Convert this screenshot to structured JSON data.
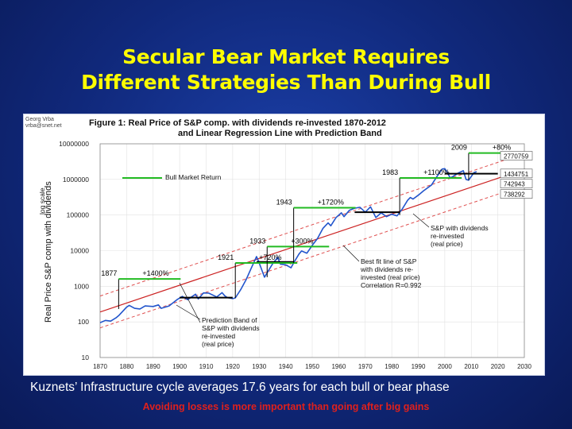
{
  "slide": {
    "title_line1": "Secular Bear Market Requires",
    "title_line2": "Different Strategies Than During Bull",
    "subtitle": "Kuznets’ Infrastructure cycle averages 17.6 years for each bull or bear phase",
    "subtitle2": "Avoiding losses is more important than going after big gains",
    "title_color": "#ffff00",
    "subtitle2_color": "#e0201c"
  },
  "chart_data": {
    "type": "line",
    "author_line1": "Georg Vrba",
    "author_line2": "vrba@snet.net",
    "title_line1": "Figure 1:  Real Price of S&P comp. with dividends re-invested  1870-2012",
    "title_line2": "and Linear Regression Line with Prediction Band",
    "ylabel": "Real Price S&P comp with dividends",
    "ylabel_scale": "log scale",
    "y_scale": "log",
    "ylim": [
      10,
      10000000
    ],
    "xlim": [
      1870,
      2030
    ],
    "x_ticks": [
      "1870",
      "1880",
      "1890",
      "1900",
      "1910",
      "1920",
      "1930",
      "1940",
      "1950",
      "1960",
      "1970",
      "1980",
      "1990",
      "2000",
      "2010",
      "2020",
      "2030"
    ],
    "y_ticks": [
      {
        "value": 10,
        "label": "10"
      },
      {
        "value": 100,
        "label": "100"
      },
      {
        "value": 1000,
        "label": "1000"
      },
      {
        "value": 10000,
        "label": "10000"
      },
      {
        "value": 100000,
        "label": "100000"
      },
      {
        "value": 1000000,
        "label": "1000000"
      },
      {
        "value": 10000000,
        "label": "10000000"
      }
    ],
    "regression": {
      "x0": 1870,
      "y0": 190,
      "x1": 2025,
      "y1": 1434751
    },
    "band_factor": 2.8,
    "series": [
      {
        "color": "#2255cc",
        "points": [
          [
            1870,
            95
          ],
          [
            1872,
            110
          ],
          [
            1874,
            105
          ],
          [
            1876,
            130
          ],
          [
            1877,
            150
          ],
          [
            1880,
            260
          ],
          [
            1881,
            290
          ],
          [
            1883,
            240
          ],
          [
            1885,
            230
          ],
          [
            1887,
            280
          ],
          [
            1890,
            270
          ],
          [
            1892,
            300
          ],
          [
            1893,
            240
          ],
          [
            1896,
            280
          ],
          [
            1899,
            420
          ],
          [
            1901,
            520
          ],
          [
            1903,
            420
          ],
          [
            1906,
            600
          ],
          [
            1907,
            440
          ],
          [
            1909,
            650
          ],
          [
            1911,
            640
          ],
          [
            1914,
            500
          ],
          [
            1916,
            660
          ],
          [
            1917,
            540
          ],
          [
            1918,
            480
          ],
          [
            1920,
            450
          ],
          [
            1921,
            470
          ],
          [
            1923,
            800
          ],
          [
            1925,
            1500
          ],
          [
            1927,
            3200
          ],
          [
            1929,
            6800
          ],
          [
            1930,
            4500
          ],
          [
            1932,
            1800
          ],
          [
            1933,
            2400
          ],
          [
            1935,
            4200
          ],
          [
            1937,
            6500
          ],
          [
            1938,
            4200
          ],
          [
            1940,
            4000
          ],
          [
            1942,
            3300
          ],
          [
            1943,
            4500
          ],
          [
            1945,
            8000
          ],
          [
            1946,
            9800
          ],
          [
            1948,
            8500
          ],
          [
            1950,
            14000
          ],
          [
            1952,
            22000
          ],
          [
            1954,
            42000
          ],
          [
            1956,
            60000
          ],
          [
            1957,
            50000
          ],
          [
            1959,
            85000
          ],
          [
            1961,
            115000
          ],
          [
            1962,
            90000
          ],
          [
            1964,
            135000
          ],
          [
            1966,
            155000
          ],
          [
            1968,
            165000
          ],
          [
            1970,
            120000
          ],
          [
            1972,
            170000
          ],
          [
            1974,
            85000
          ],
          [
            1976,
            115000
          ],
          [
            1978,
            90000
          ],
          [
            1980,
            105000
          ],
          [
            1982,
            95000
          ],
          [
            1984,
            150000
          ],
          [
            1986,
            260000
          ],
          [
            1987,
            310000
          ],
          [
            1988,
            280000
          ],
          [
            1990,
            360000
          ],
          [
            1992,
            480000
          ],
          [
            1995,
            700000
          ],
          [
            1997,
            1200000
          ],
          [
            1999,
            1950000
          ],
          [
            2000,
            2000000
          ],
          [
            2001,
            1600000
          ],
          [
            2002,
            1100000
          ],
          [
            2003,
            1200000
          ],
          [
            2005,
            1500000
          ],
          [
            2007,
            1750000
          ],
          [
            2008,
            1000000
          ],
          [
            2009,
            950000
          ],
          [
            2011,
            1550000
          ],
          [
            2012,
            1650000
          ]
        ]
      }
    ],
    "bull_arrows": [
      {
        "year": 1877,
        "base": 230,
        "top": 1600,
        "gain_label": "+1400%",
        "year_label": "1877"
      },
      {
        "year": 1921,
        "base": 470,
        "top": 4500,
        "gain_label": "+720%",
        "year_label": "1921"
      },
      {
        "year": 1933,
        "base": 1800,
        "top": 13000,
        "gain_label": "+300%",
        "year_label": "1933"
      },
      {
        "year": 1943,
        "base": 4500,
        "top": 160000,
        "gain_label": "+1720%",
        "year_label": "1943"
      },
      {
        "year": 1983,
        "base": 100000,
        "top": 1100000,
        "gain_label": "+1100%",
        "year_label": "1983"
      },
      {
        "year": 2009,
        "base": 950000,
        "top": 5500000,
        "gain_label": "+80%",
        "year_label": "2009"
      }
    ],
    "bear_lines": [
      {
        "x0": 1900,
        "x1": 1920,
        "y": 480
      },
      {
        "x0": 1929,
        "x1": 1943,
        "y": 4800
      },
      {
        "x0": 1966,
        "x1": 1983,
        "y": 120000
      },
      {
        "x0": 2000,
        "x1": 2020,
        "y": 1450000
      }
    ],
    "right_labels": [
      {
        "label": "2770759",
        "value": 4500000
      },
      {
        "label": "1434751",
        "value": 1434751
      },
      {
        "label": "742943",
        "value": 742943
      },
      {
        "label": "738292",
        "value": 380000
      }
    ],
    "annotations": {
      "bull_market_return": "Bull Market Return",
      "sp_line1": "S&P with dividends",
      "sp_line2": "re-invested",
      "sp_line3": "(real price)",
      "best_fit_line1": "Best fit line of S&P",
      "best_fit_line2": "with dividends re-",
      "best_fit_line3": "invested (real price)",
      "best_fit_line4": "Correlation R=0.992",
      "band_line1": "Prediction Band of",
      "band_line2": "S&P with dividends",
      "band_line3": "re-invested",
      "band_line4": "(real price)"
    },
    "colors": {
      "price": "#2255cc",
      "regression": "#cc2222",
      "band": "#e05050",
      "bull": "#22bb22",
      "bear": "#000000"
    }
  }
}
